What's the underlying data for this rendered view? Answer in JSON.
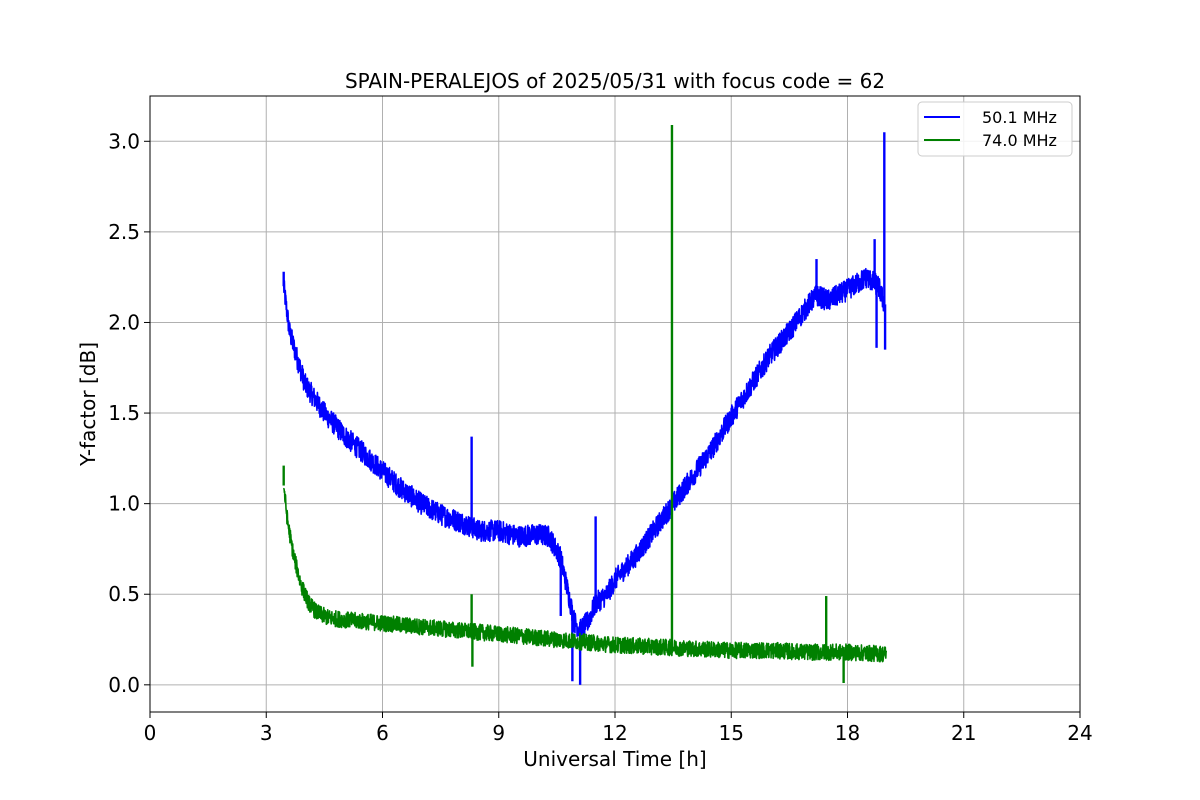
{
  "chart_data": {
    "type": "line",
    "title": "SPAIN-PERALEJOS of 2025/05/31 with focus code = 62",
    "xlabel": "Universal Time [h]",
    "ylabel": "Y-factor [dB]",
    "xlim": [
      0,
      24
    ],
    "ylim": [
      -0.15,
      3.25
    ],
    "xticks": [
      0,
      3,
      6,
      9,
      12,
      15,
      18,
      21,
      24
    ],
    "xtick_labels": [
      "0",
      "3",
      "6",
      "9",
      "12",
      "15",
      "18",
      "21",
      "24"
    ],
    "yticks": [
      0.0,
      0.5,
      1.0,
      1.5,
      2.0,
      2.5,
      3.0
    ],
    "ytick_labels": [
      "0.0",
      "0.5",
      "1.0",
      "1.5",
      "2.0",
      "2.5",
      "3.0"
    ],
    "grid": true,
    "legend_position": "top-right",
    "series": [
      {
        "name": "50.1 MHz",
        "color": "#0000ff",
        "noise": 0.06,
        "x": [
          3.45,
          3.6,
          3.8,
          4.0,
          4.5,
          5.0,
          5.5,
          6.0,
          6.5,
          7.0,
          7.5,
          8.0,
          8.5,
          9.0,
          9.5,
          10.0,
          10.3,
          10.6,
          10.8,
          10.95,
          11.1,
          11.3,
          11.5,
          11.8,
          12.0,
          12.5,
          13.0,
          13.5,
          14.0,
          14.5,
          15.0,
          15.5,
          16.0,
          16.5,
          17.0,
          17.2,
          17.5,
          18.0,
          18.5,
          18.8,
          18.95
        ],
        "y": [
          2.2,
          1.95,
          1.8,
          1.66,
          1.5,
          1.38,
          1.28,
          1.18,
          1.08,
          1.0,
          0.94,
          0.9,
          0.85,
          0.85,
          0.82,
          0.83,
          0.82,
          0.7,
          0.5,
          0.35,
          0.3,
          0.35,
          0.45,
          0.5,
          0.58,
          0.7,
          0.85,
          1.0,
          1.15,
          1.3,
          1.48,
          1.65,
          1.82,
          1.95,
          2.1,
          2.15,
          2.12,
          2.18,
          2.25,
          2.2,
          2.1
        ],
        "spikes": [
          {
            "x": 3.45,
            "y": 2.28
          },
          {
            "x": 8.3,
            "y": 1.37
          },
          {
            "x": 10.6,
            "y": 0.38
          },
          {
            "x": 10.9,
            "y": 0.02
          },
          {
            "x": 11.1,
            "y": 0.0
          },
          {
            "x": 11.5,
            "y": 0.93
          },
          {
            "x": 17.2,
            "y": 2.35
          },
          {
            "x": 18.7,
            "y": 2.46
          },
          {
            "x": 18.75,
            "y": 1.86
          },
          {
            "x": 18.95,
            "y": 3.05
          },
          {
            "x": 18.97,
            "y": 1.85
          }
        ]
      },
      {
        "name": "74.0 MHz",
        "color": "#008000",
        "noise": 0.045,
        "x": [
          3.45,
          3.55,
          3.7,
          3.9,
          4.1,
          4.3,
          4.6,
          5.0,
          5.5,
          6.0,
          7.0,
          8.0,
          9.0,
          10.0,
          11.0,
          12.0,
          13.0,
          14.0,
          15.0,
          16.0,
          17.0,
          18.0,
          19.0
        ],
        "y": [
          1.1,
          0.9,
          0.72,
          0.55,
          0.45,
          0.4,
          0.37,
          0.36,
          0.35,
          0.34,
          0.32,
          0.3,
          0.28,
          0.26,
          0.24,
          0.22,
          0.21,
          0.2,
          0.19,
          0.19,
          0.18,
          0.18,
          0.17
        ],
        "spikes": [
          {
            "x": 3.45,
            "y": 1.21
          },
          {
            "x": 8.3,
            "y": 0.5
          },
          {
            "x": 8.32,
            "y": 0.1
          },
          {
            "x": 13.47,
            "y": 3.09
          },
          {
            "x": 17.45,
            "y": 0.49
          },
          {
            "x": 17.9,
            "y": 0.01
          }
        ]
      }
    ]
  }
}
